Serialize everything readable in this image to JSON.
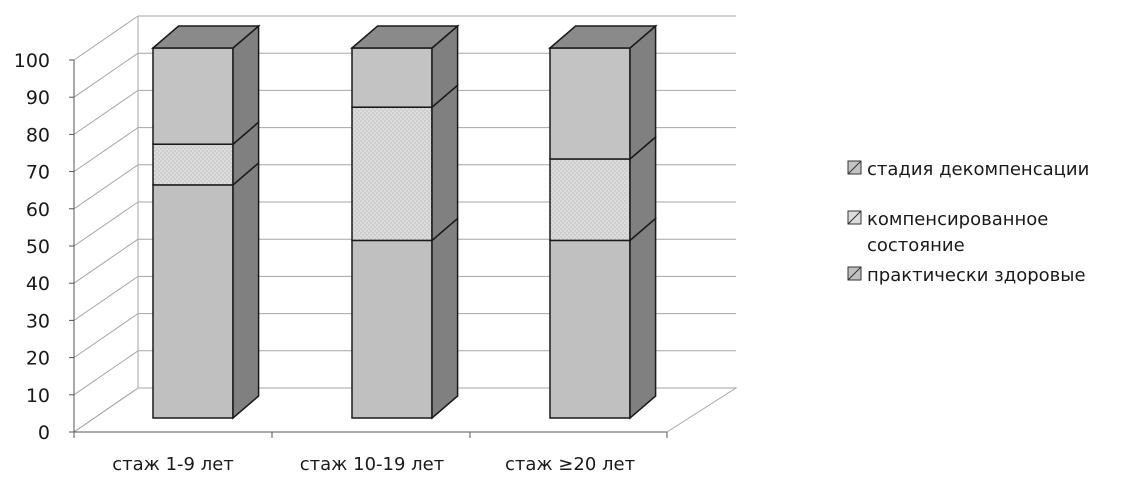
{
  "chart_data": {
    "type": "bar",
    "stacked": true,
    "three_d": true,
    "categories": [
      "стаж 1-9 лет",
      "стаж 10-19 лет",
      "стаж ≥20 лет"
    ],
    "series": [
      {
        "name": "практически здоровые",
        "values": [
          63,
          48,
          48
        ],
        "color": "#c0c0c0"
      },
      {
        "name": "компенсированное состояние",
        "values": [
          11,
          36,
          22
        ],
        "color": "#dcdcdc"
      },
      {
        "name": "стадия декомпенсации",
        "values": [
          26,
          16,
          30
        ],
        "color": "#c3c3c3"
      }
    ],
    "legend_order": [
      2,
      1,
      0
    ],
    "legend_position": "right",
    "ylim": [
      0,
      100
    ],
    "yticks": [
      "0",
      "10",
      "20",
      "30",
      "40",
      "50",
      "60",
      "70",
      "80",
      "90",
      "100"
    ],
    "grid": true,
    "title": "",
    "xlabel": "",
    "ylabel": "",
    "colors": {
      "side": "#808080",
      "top": "#8a8a8a",
      "grid": "#a6a6a6",
      "axis": "#555555"
    }
  }
}
